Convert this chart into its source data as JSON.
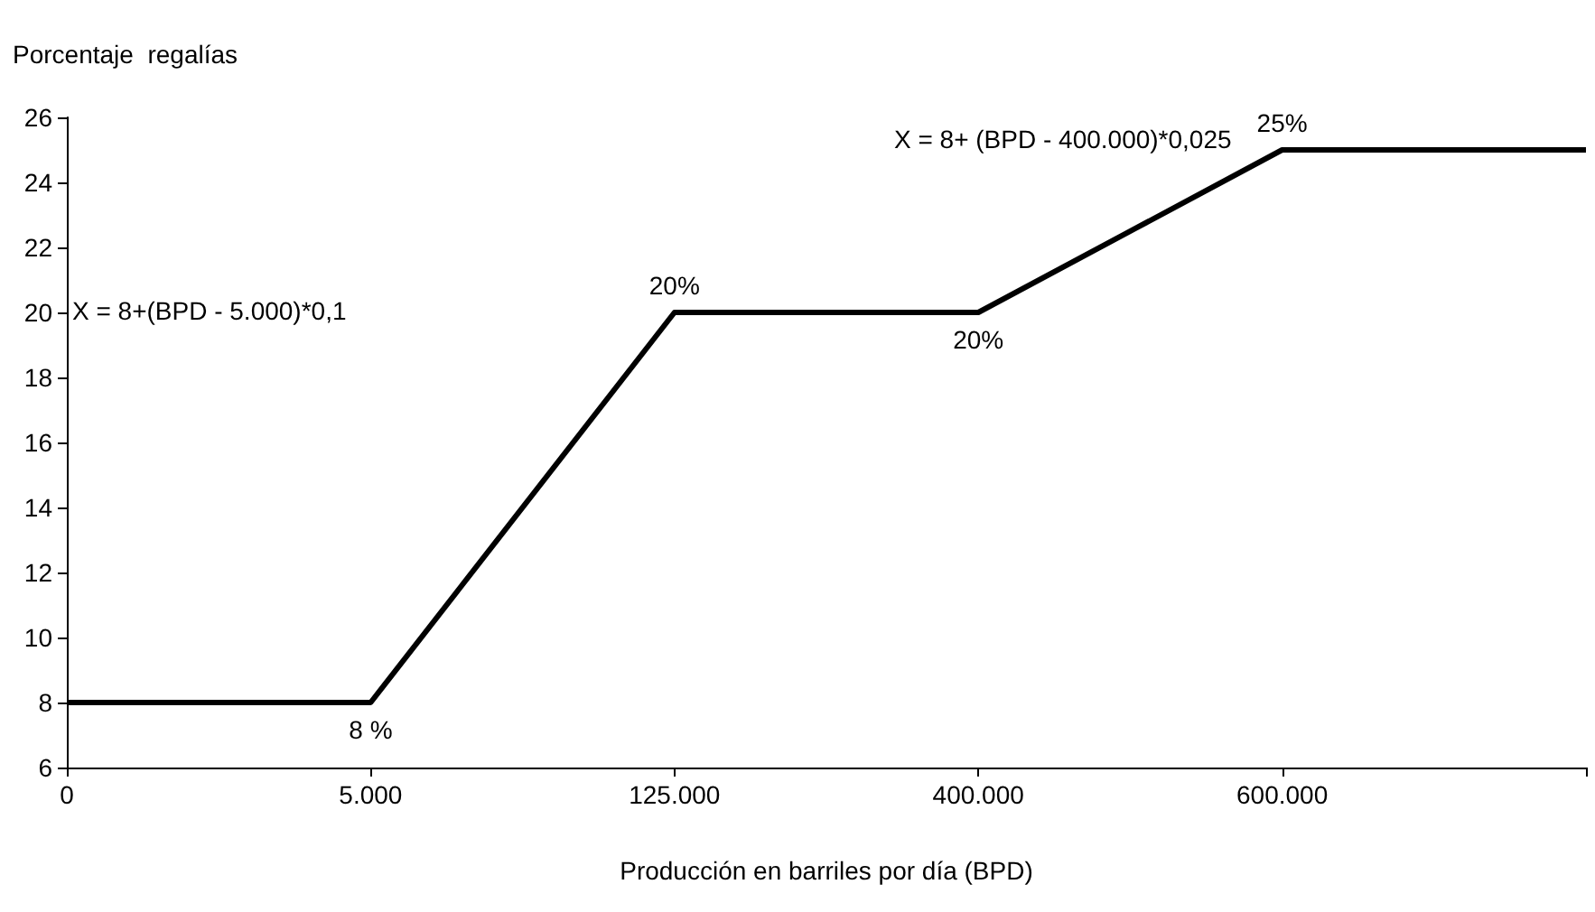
{
  "chart_data": {
    "type": "line",
    "ylabel": "Porcentaje  regalías",
    "xlabel": "Producción en barriles por día (BPD)",
    "categories": [
      "0",
      "5.000",
      "125.000",
      "400.000",
      "600.000",
      null
    ],
    "series": [
      {
        "color": "#000000",
        "values": [
          8,
          8,
          20,
          20,
          25,
          25
        ],
        "value_labels": [
          null,
          "8 %",
          "20%",
          "20%",
          "25%",
          null
        ]
      }
    ],
    "ylim": [
      6,
      26
    ],
    "yticks": [
      6,
      8,
      10,
      12,
      14,
      16,
      18,
      20,
      22,
      24,
      26
    ],
    "annotations": [
      "X = 8+(BPD - 5.000)*0,1",
      "X = 8+ (BPD - 400.000)*0,025"
    ],
    "marker": "none",
    "line_style": "solid",
    "grid": false
  }
}
